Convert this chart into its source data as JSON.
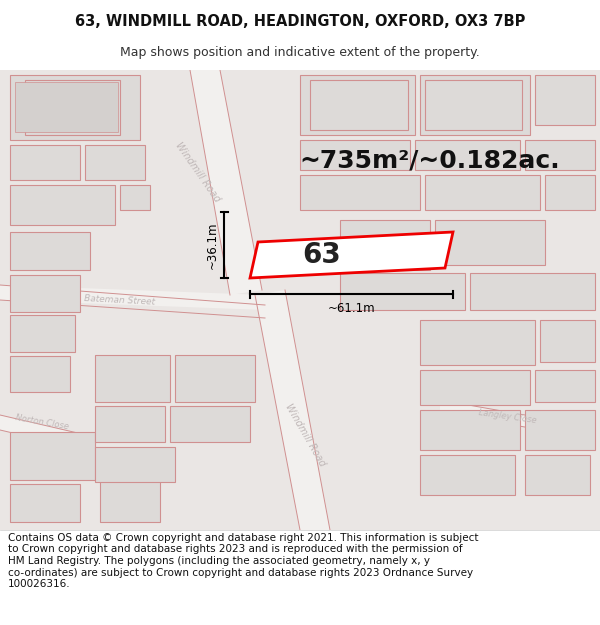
{
  "title_line1": "63, WINDMILL ROAD, HEADINGTON, OXFORD, OX3 7BP",
  "title_line2": "Map shows position and indicative extent of the property.",
  "area_text": "~735m²/~0.182ac.",
  "label_63": "63",
  "dim_vertical": "~36.1m",
  "dim_horizontal": "~61.1m",
  "footer_line1": "Contains OS data © Crown copyright and database right 2021. This information is subject",
  "footer_line2": "to Crown copyright and database rights 2023 and is reproduced with the permission of",
  "footer_line3": "HM Land Registry. The polygons (including the associated geometry, namely x, y",
  "footer_line4": "co-ordinates) are subject to Crown copyright and database rights 2023 Ordnance Survey",
  "footer_line5": "100026316.",
  "bg_color": "#eeeae8",
  "map_bg": "#eae6e4",
  "block_fill": "#dddad8",
  "block_edge": "#d09090",
  "road_fill": "#f2f0ee",
  "property_edge": "#ee0000",
  "property_fill": "none",
  "dim_color": "#111111",
  "street_color": "#c0b8b8",
  "title_fs": 10.5,
  "subtitle_fs": 9,
  "area_fs": 18,
  "label_fs": 20,
  "dim_fs": 8.5,
  "footer_fs": 7.5,
  "street_fs": 7
}
